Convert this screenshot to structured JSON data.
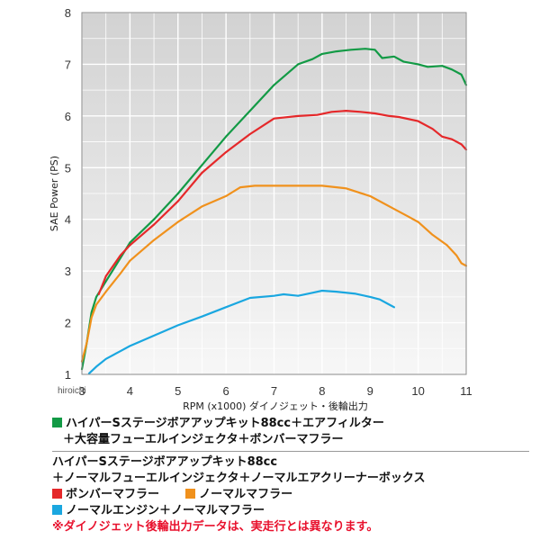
{
  "chart_data": {
    "type": "line",
    "ylabel": "SAE Power (PS)",
    "xlabel": "RPM (x1000) ダイノジェット・後輪出力",
    "x_ticks": [
      3,
      4,
      5,
      6,
      7,
      8,
      9,
      10,
      11
    ],
    "y_ticks": [
      1,
      2,
      3,
      4,
      5,
      6,
      7,
      8
    ],
    "xlim": [
      3,
      11
    ],
    "ylim": [
      1,
      8
    ],
    "grid": true,
    "series": [
      {
        "color": "#129a45",
        "x": [
          3.0,
          3.1,
          3.2,
          3.3,
          3.5,
          3.7,
          4.0,
          4.5,
          5.0,
          5.5,
          6.0,
          6.5,
          7.0,
          7.5,
          7.8,
          8.0,
          8.3,
          8.6,
          8.9,
          9.1,
          9.25,
          9.5,
          9.7,
          10.0,
          10.2,
          10.5,
          10.7,
          10.9,
          11.0
        ],
        "y": [
          1.1,
          1.6,
          2.2,
          2.5,
          2.8,
          3.1,
          3.55,
          4.0,
          4.5,
          5.05,
          5.6,
          6.1,
          6.6,
          7.0,
          7.1,
          7.2,
          7.25,
          7.28,
          7.3,
          7.28,
          7.12,
          7.15,
          7.05,
          7.0,
          6.95,
          6.97,
          6.9,
          6.8,
          6.6
        ]
      },
      {
        "color": "#e5282a",
        "x": [
          3.35,
          3.5,
          3.8,
          4.0,
          4.5,
          5.0,
          5.5,
          6.0,
          6.5,
          7.0,
          7.5,
          7.9,
          8.2,
          8.5,
          8.8,
          9.1,
          9.4,
          9.6,
          10.0,
          10.3,
          10.5,
          10.7,
          10.9,
          11.0
        ],
        "y": [
          2.55,
          2.9,
          3.3,
          3.5,
          3.9,
          4.35,
          4.9,
          5.3,
          5.65,
          5.95,
          6.0,
          6.02,
          6.08,
          6.1,
          6.08,
          6.05,
          6.0,
          5.98,
          5.9,
          5.75,
          5.6,
          5.55,
          5.45,
          5.35
        ]
      },
      {
        "color": "#f0911c",
        "x": [
          3.0,
          3.1,
          3.2,
          3.3,
          3.5,
          3.8,
          4.0,
          4.5,
          5.0,
          5.5,
          6.0,
          6.3,
          6.6,
          7.0,
          7.5,
          8.0,
          8.5,
          9.0,
          9.5,
          9.8,
          10.0,
          10.3,
          10.6,
          10.8,
          10.9,
          11.0
        ],
        "y": [
          1.25,
          1.6,
          2.1,
          2.35,
          2.6,
          2.95,
          3.2,
          3.6,
          3.95,
          4.25,
          4.45,
          4.62,
          4.65,
          4.65,
          4.65,
          4.65,
          4.6,
          4.45,
          4.2,
          4.05,
          3.95,
          3.7,
          3.5,
          3.3,
          3.15,
          3.1
        ]
      },
      {
        "color": "#1aa7e0",
        "x": [
          3.15,
          3.3,
          3.5,
          3.8,
          4.0,
          4.5,
          5.0,
          5.5,
          6.0,
          6.5,
          7.0,
          7.2,
          7.5,
          7.8,
          8.0,
          8.3,
          8.7,
          9.0,
          9.2,
          9.4,
          9.5
        ],
        "y": [
          1.02,
          1.15,
          1.3,
          1.45,
          1.55,
          1.75,
          1.95,
          2.12,
          2.3,
          2.48,
          2.52,
          2.55,
          2.52,
          2.58,
          2.62,
          2.6,
          2.56,
          2.5,
          2.45,
          2.35,
          2.3
        ]
      }
    ]
  },
  "legend": {
    "line1": "ハイパーSステージボアアップキット88cc＋エアフィルター",
    "line2": "＋大容量フューエルインジェクタ＋ボンバーマフラー",
    "line3": "ハイパーSステージボアアップキット88cc",
    "line4": "＋ノーマルフューエルインジェクタ＋ノーマルエアクリーナーボックス",
    "item_red": "ボンバーマフラー",
    "item_orange": "ノーマルマフラー",
    "item_blue": "ノーマルエンジン＋ノーマルマフラー",
    "note": "※ダイノジェット後輪出力データは、実走行とは異なります。",
    "color_green": "#129a45",
    "color_red": "#e5282a",
    "color_orange": "#f0911c",
    "color_blue": "#1aa7e0"
  },
  "watermark": "hiroichi"
}
